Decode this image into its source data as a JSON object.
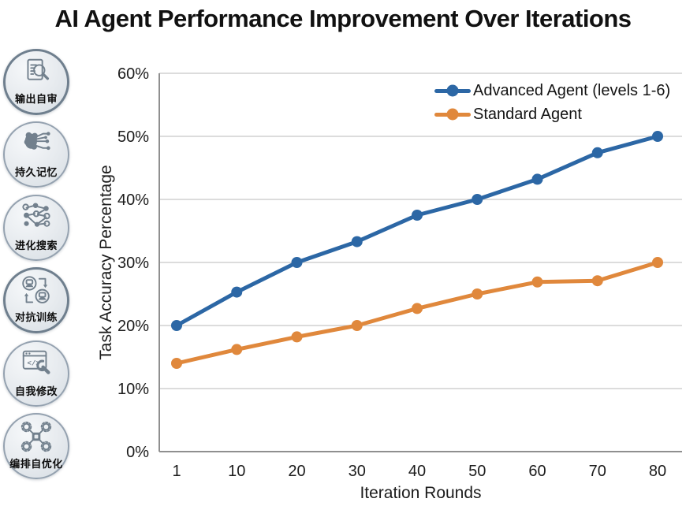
{
  "title": "AI Agent Performance Improvement Over Iterations",
  "sidebar": {
    "items": [
      {
        "icon": "document-review-icon",
        "label": "输出自审"
      },
      {
        "icon": "brain-memory-icon",
        "label": "持久记忆"
      },
      {
        "icon": "evolution-search-icon",
        "label": "进化搜索"
      },
      {
        "icon": "adversarial-train-icon",
        "label": "对抗训练"
      },
      {
        "icon": "code-wrench-icon",
        "label": "自我修改"
      },
      {
        "icon": "chip-gears-icon",
        "label": "编排自优化"
      }
    ]
  },
  "chart_data": {
    "type": "line",
    "title": "",
    "xlabel": "Iteration Rounds",
    "ylabel": "Task Accuracy Percentage",
    "categories": [
      "1",
      "10",
      "20",
      "30",
      "40",
      "50",
      "60",
      "70",
      "80"
    ],
    "y_ticks": [
      "0%",
      "10%",
      "20%",
      "30%",
      "40%",
      "50%",
      "60%"
    ],
    "ylim": [
      0,
      60
    ],
    "grid": true,
    "legend_position": "top-right",
    "series": [
      {
        "name": "Advanced Agent (levels 1-6)",
        "color": "#2c67a5",
        "values": [
          20,
          25.3,
          30,
          33.3,
          37.5,
          40,
          43.2,
          47.4,
          50
        ]
      },
      {
        "name": "Standard Agent",
        "color": "#e0883c",
        "values": [
          14,
          16.2,
          18.2,
          20,
          22.7,
          25,
          26.9,
          27.1,
          30
        ]
      }
    ],
    "colors": {
      "gridline": "#c6c6c6",
      "axis": "#8f8f8f",
      "text": "#1c1c1c"
    }
  }
}
